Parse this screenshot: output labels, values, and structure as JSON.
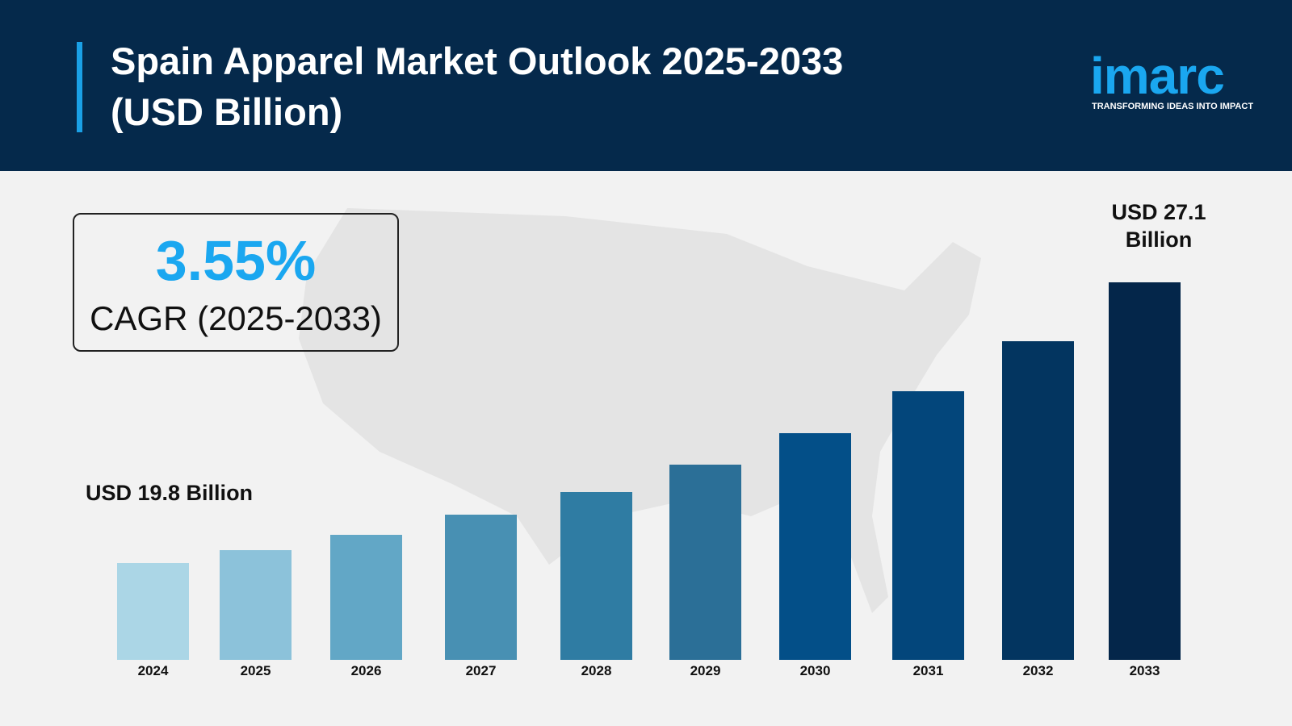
{
  "header": {
    "title_line1": "Spain Apparel Market Outlook 2025-2033",
    "title_line2": "(USD Billion)"
  },
  "logo": {
    "word": "imarc",
    "tagline": "TRANSFORMING IDEAS INTO IMPACT"
  },
  "cagr": {
    "value": "3.55%",
    "label": "CAGR (2025-2033)"
  },
  "colors": {
    "header_bg": "#05294b",
    "accent": "#1aa7f0",
    "background": "#f2f2f2"
  },
  "chart_data": {
    "type": "bar",
    "title": "Spain Apparel Market Outlook 2025-2033 (USD Billion)",
    "categories": [
      "2024",
      "2025",
      "2026",
      "2027",
      "2028",
      "2029",
      "2030",
      "2031",
      "2032",
      "2033"
    ],
    "values": [
      19.8,
      20.5,
      21.2,
      22.0,
      22.8,
      23.6,
      24.4,
      25.3,
      26.2,
      27.1
    ],
    "bar_colors": [
      "#abd6e6",
      "#8cc2da",
      "#62a7c6",
      "#4890b3",
      "#2f7ca3",
      "#2b6f97",
      "#034f88",
      "#03467b",
      "#033560",
      "#04264a"
    ],
    "annotations": {
      "start": "USD 19.8 Billion",
      "end_line1": "USD 27.1",
      "end_line2": "Billion"
    },
    "grid": false,
    "legend": "none"
  }
}
